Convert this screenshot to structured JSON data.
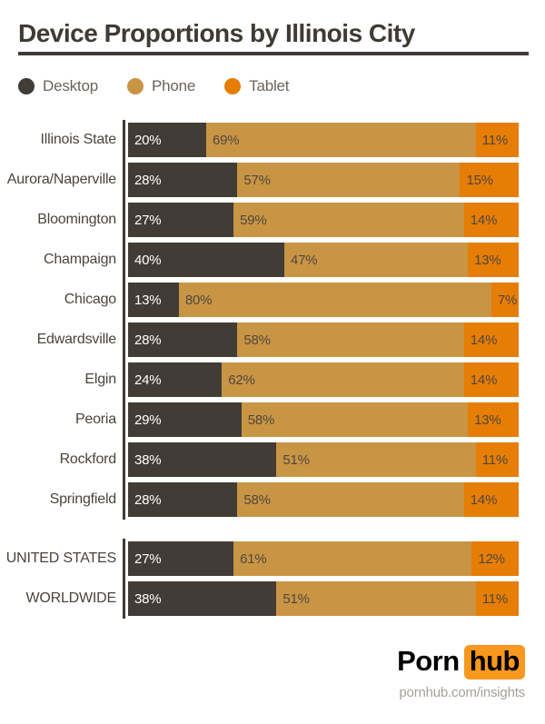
{
  "title": "Device Proportions by Illinois City",
  "legend": {
    "items": [
      {
        "label": "Desktop",
        "color": "#423c36"
      },
      {
        "label": "Phone",
        "color": "#c89545"
      },
      {
        "label": "Tablet",
        "color": "#e67d04"
      }
    ]
  },
  "chart_data": {
    "type": "bar",
    "variant": "horizontal-stacked",
    "unit": "percent",
    "value_suffix": "%",
    "xlim": [
      0,
      100
    ],
    "series_names": [
      "Desktop",
      "Phone",
      "Tablet"
    ],
    "series_colors": [
      "#423c36",
      "#c89545",
      "#e67d04"
    ],
    "groups": [
      {
        "name": "illinois-cities",
        "rows": [
          {
            "label": "Illinois State",
            "values": [
              20,
              69,
              11
            ]
          },
          {
            "label": "Aurora/Naperville",
            "values": [
              28,
              57,
              15
            ]
          },
          {
            "label": "Bloomington",
            "values": [
              27,
              59,
              14
            ]
          },
          {
            "label": "Champaign",
            "values": [
              40,
              47,
              13
            ]
          },
          {
            "label": "Chicago",
            "values": [
              13,
              80,
              7
            ]
          },
          {
            "label": "Edwardsville",
            "values": [
              28,
              58,
              14
            ]
          },
          {
            "label": "Elgin",
            "values": [
              24,
              62,
              14
            ]
          },
          {
            "label": "Peoria",
            "values": [
              29,
              58,
              13
            ]
          },
          {
            "label": "Rockford",
            "values": [
              38,
              51,
              11
            ]
          },
          {
            "label": "Springfield",
            "values": [
              28,
              58,
              14
            ]
          }
        ]
      },
      {
        "name": "totals",
        "rows": [
          {
            "label": "UNITED STATES",
            "values": [
              27,
              61,
              12
            ]
          },
          {
            "label": "WORLDWIDE",
            "values": [
              38,
              51,
              11
            ]
          }
        ]
      }
    ]
  },
  "footer": {
    "logo_text_porn": "Porn",
    "logo_text_hub": "hub",
    "logo_hub_bg": "#f8981d",
    "url": "pornhub.com/insights"
  }
}
